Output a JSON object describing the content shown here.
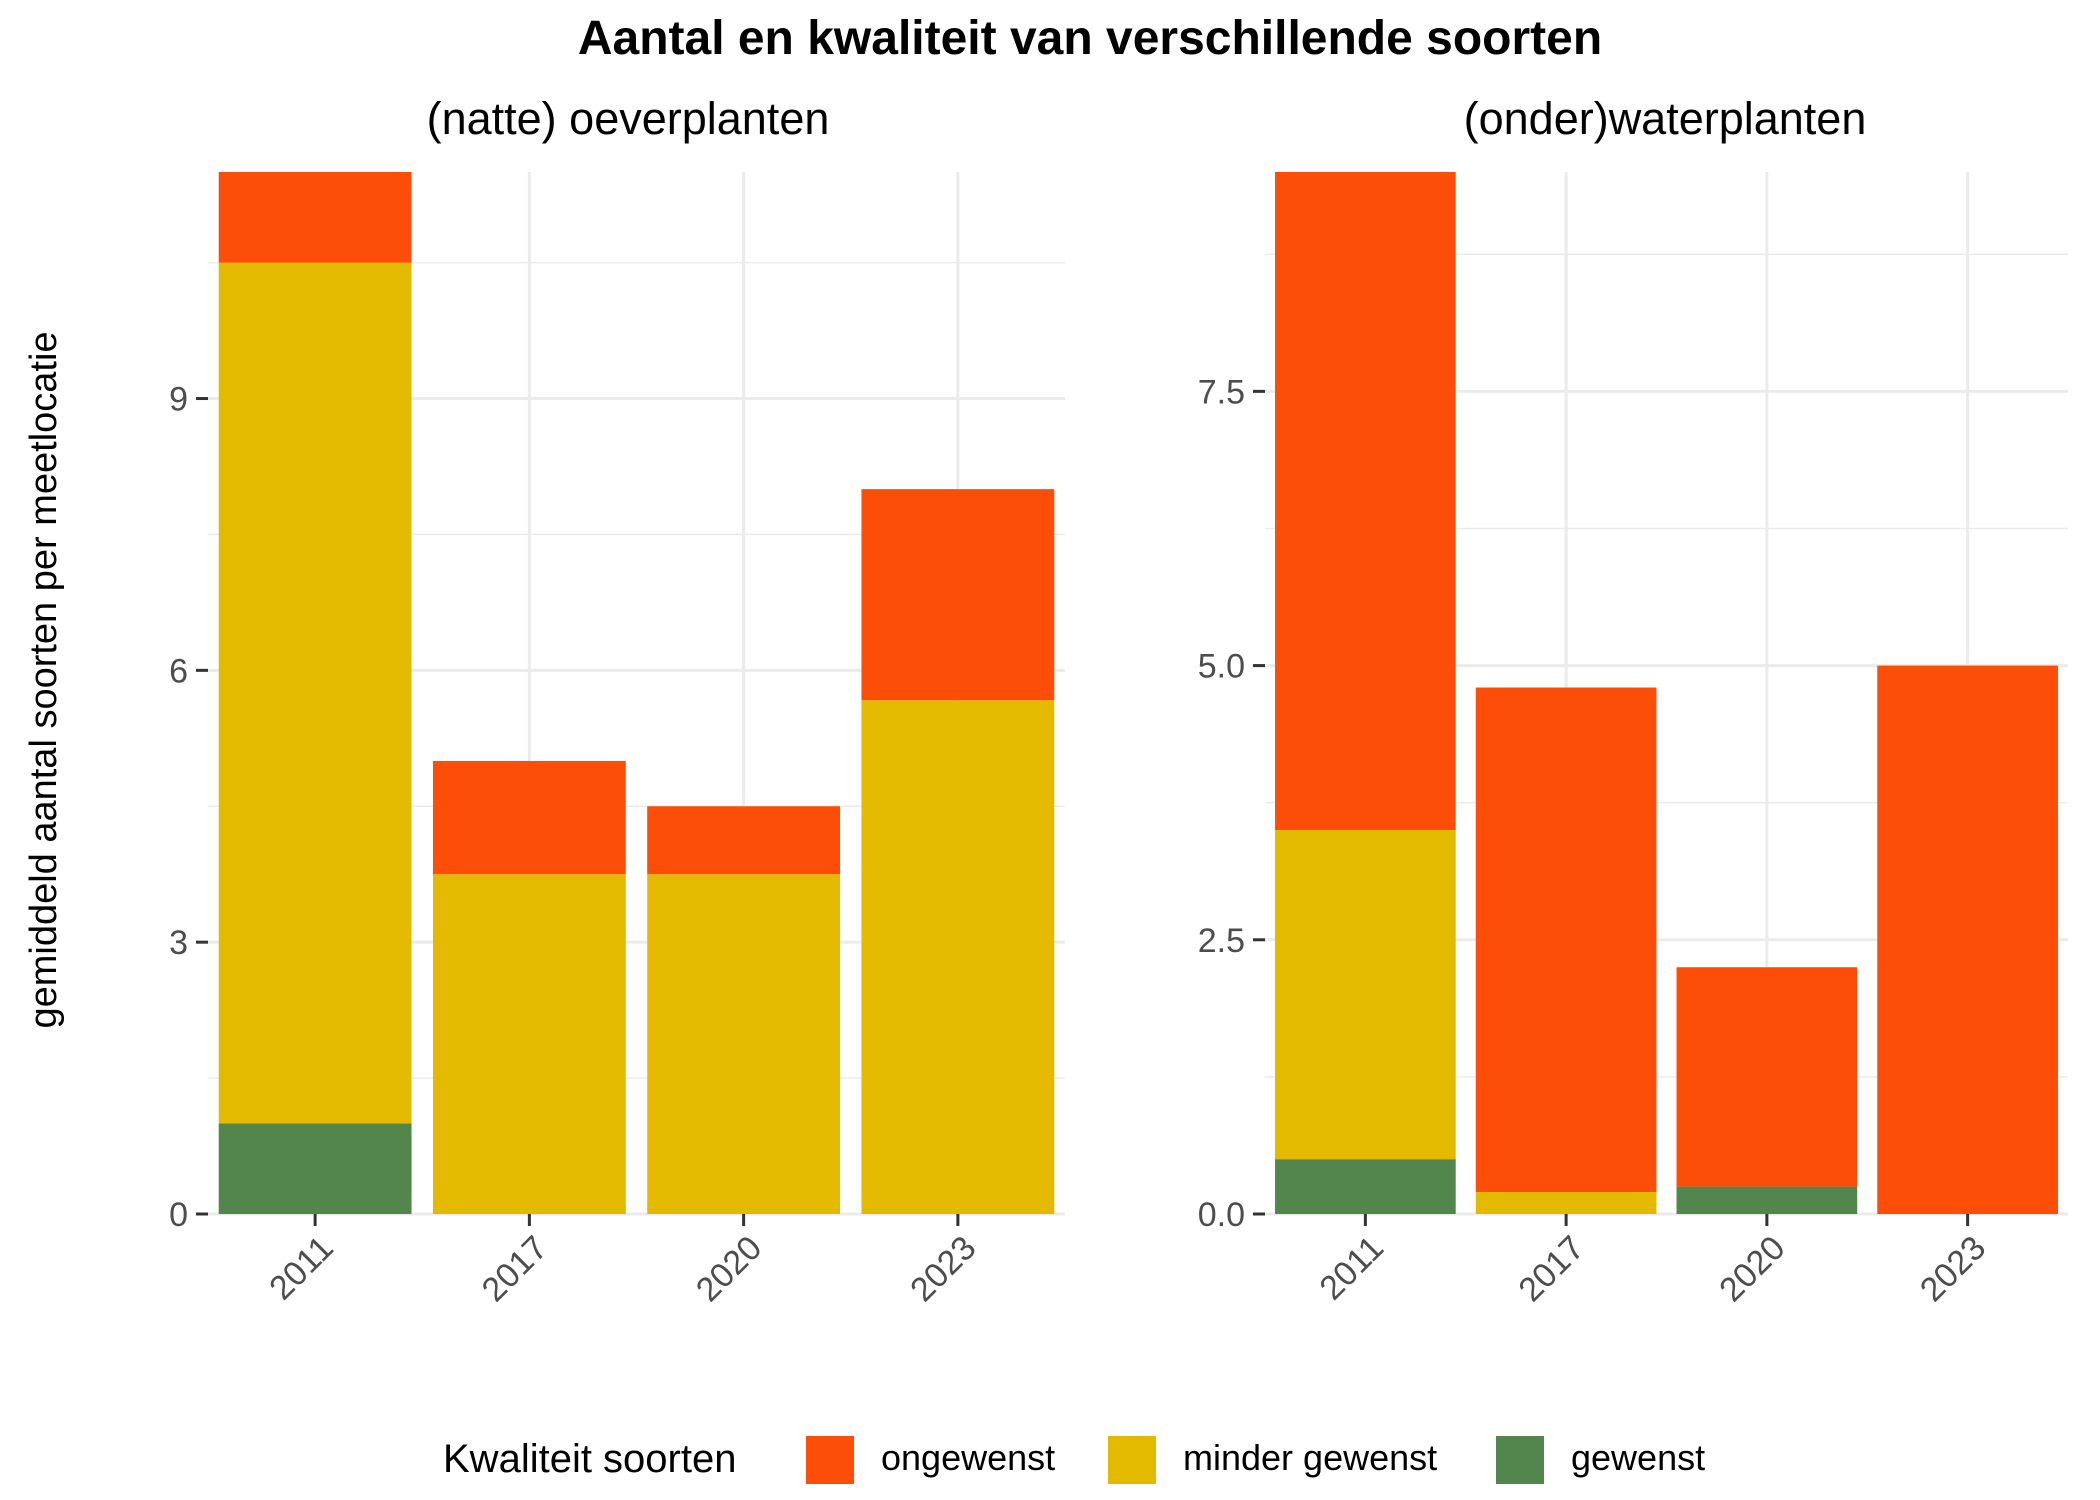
{
  "title": "Aantal en kwaliteit van verschillende soorten",
  "legend": {
    "title": "Kwaliteit soorten",
    "items": [
      {
        "key": "ongewenst",
        "label": "ongewenst",
        "color": "#FC4E08"
      },
      {
        "key": "minder_gewenst",
        "label": "minder gewenst",
        "color": "#E4BA00"
      },
      {
        "key": "gewenst",
        "label": "gewenst",
        "color": "#52864C"
      }
    ]
  },
  "chart_data": [
    {
      "type": "bar",
      "stacked": true,
      "title": "(natte) oeverplanten",
      "ylabel": "gemiddeld aantal soorten per meetlocatie",
      "categories": [
        "2011",
        "2017",
        "2020",
        "2023"
      ],
      "ylim": [
        0,
        11.5
      ],
      "yticks": [
        0,
        3,
        6,
        9
      ],
      "ytick_labels": [
        "0",
        "3",
        "6",
        "9"
      ],
      "grid": true,
      "series": [
        {
          "name": "gewenst",
          "values": [
            1.0,
            0,
            0,
            0
          ]
        },
        {
          "name": "minder gewenst",
          "values": [
            9.5,
            3.75,
            3.75,
            5.67
          ]
        },
        {
          "name": "ongewenst",
          "values": [
            1.0,
            1.25,
            0.75,
            2.33
          ]
        }
      ]
    },
    {
      "type": "bar",
      "stacked": true,
      "title": "(onder)waterplanten",
      "categories": [
        "2011",
        "2017",
        "2020",
        "2023"
      ],
      "ylim": [
        0,
        9.5
      ],
      "yticks": [
        0,
        2.5,
        5,
        7.5
      ],
      "ytick_labels": [
        "0.0",
        "2.5",
        "5.0",
        "7.5"
      ],
      "grid": true,
      "series": [
        {
          "name": "gewenst",
          "values": [
            0.5,
            0,
            0.25,
            0
          ]
        },
        {
          "name": "minder gewenst",
          "values": [
            3.0,
            0.2,
            0,
            0
          ]
        },
        {
          "name": "ongewenst",
          "values": [
            6.0,
            4.6,
            2.0,
            5.0
          ]
        }
      ]
    }
  ]
}
